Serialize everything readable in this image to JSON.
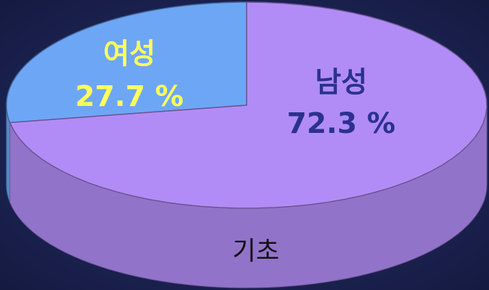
{
  "chart_data": {
    "type": "pie",
    "categories": [
      "여성",
      "남성"
    ],
    "values": [
      27.7,
      72.3
    ],
    "value_labels": [
      "27.7 %",
      "72.3 %"
    ],
    "colors": [
      "#6ea6f6",
      "#b28cf6"
    ],
    "label_colors": [
      "#ffff5a",
      "#2b3190"
    ],
    "annotation": "기초"
  }
}
